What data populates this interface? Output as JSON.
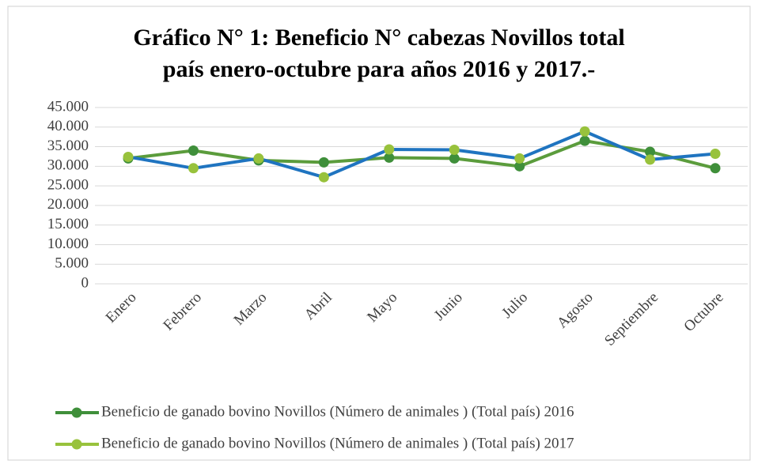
{
  "chart_data": {
    "type": "line",
    "title": [
      "Gráfico N° 1: Beneficio N° cabezas Novillos total",
      "país enero-octubre para años 2016 y 2017.-"
    ],
    "categories": [
      "Enero",
      "Febrero",
      "Marzo",
      "Abril",
      "Mayo",
      "Junio",
      "Julio",
      "Agosto",
      "Septiembre",
      "Octubre"
    ],
    "series": [
      {
        "name": "Beneficio de ganado bovino Novillos (Número de animales ) (Total país) 2016",
        "color": "#5b9c3c",
        "marker_color": "#3f8f3a",
        "values": [
          32000,
          34000,
          31500,
          31000,
          32200,
          32000,
          30000,
          36500,
          33700,
          29500
        ]
      },
      {
        "name": "Beneficio de ganado bovino Novillos (Número de animales ) (Total país) 2017",
        "color": "#1f74c0",
        "marker_color": "#98c23c",
        "values": [
          32400,
          29500,
          32000,
          27200,
          34300,
          34200,
          32000,
          38900,
          31700,
          33200
        ]
      }
    ],
    "ylim": [
      0,
      45000
    ],
    "yticks": [
      0,
      {
        "value": 5000,
        "label": "5.000"
      },
      {
        "value": 10000,
        "label": "10.000"
      },
      {
        "value": 15000,
        "label": "15.000"
      },
      {
        "value": 20000,
        "label": "20.000"
      },
      {
        "value": 25000,
        "label": "25.000"
      },
      {
        "value": 30000,
        "label": "30.000"
      },
      {
        "value": 35000,
        "label": "35.000"
      },
      {
        "value": 40000,
        "label": "40.000"
      },
      {
        "value": 45000,
        "label": "45.000"
      }
    ],
    "grid": true,
    "legend": "bottom"
  }
}
